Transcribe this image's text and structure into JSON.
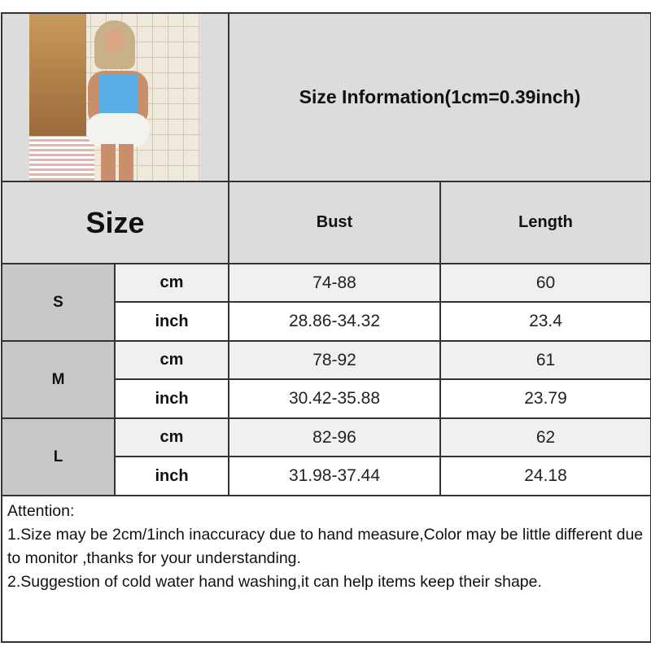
{
  "title": "Size Information(1cm=0.39inch)",
  "header": {
    "size": "Size",
    "columns": [
      "Bust",
      "Length"
    ]
  },
  "rows": [
    {
      "size": "S",
      "cm": {
        "unit": "cm",
        "bust": "74-88",
        "length": "60"
      },
      "inch": {
        "unit": "inch",
        "bust": "28.86-34.32",
        "length": "23.4"
      }
    },
    {
      "size": "M",
      "cm": {
        "unit": "cm",
        "bust": "78-92",
        "length": "61"
      },
      "inch": {
        "unit": "inch",
        "bust": "30.42-35.88",
        "length": "23.79"
      }
    },
    {
      "size": "L",
      "cm": {
        "unit": "cm",
        "bust": "82-96",
        "length": "62"
      },
      "inch": {
        "unit": "inch",
        "bust": "31.98-37.44",
        "length": "24.18"
      }
    }
  ],
  "attention": {
    "heading": "Attention:",
    "lines": [
      "1.Size may be 2cm/1inch inaccuracy due to hand measure,Color may be little different due to monitor ,thanks for your understanding.",
      "2.Suggestion of cold water hand washing,it can help items keep their shape."
    ]
  },
  "colors": {
    "header_gray": "#dcdcdc",
    "size_gray": "#c8c8c8",
    "cm_row": "#f0f0f0",
    "border": "#333333"
  }
}
